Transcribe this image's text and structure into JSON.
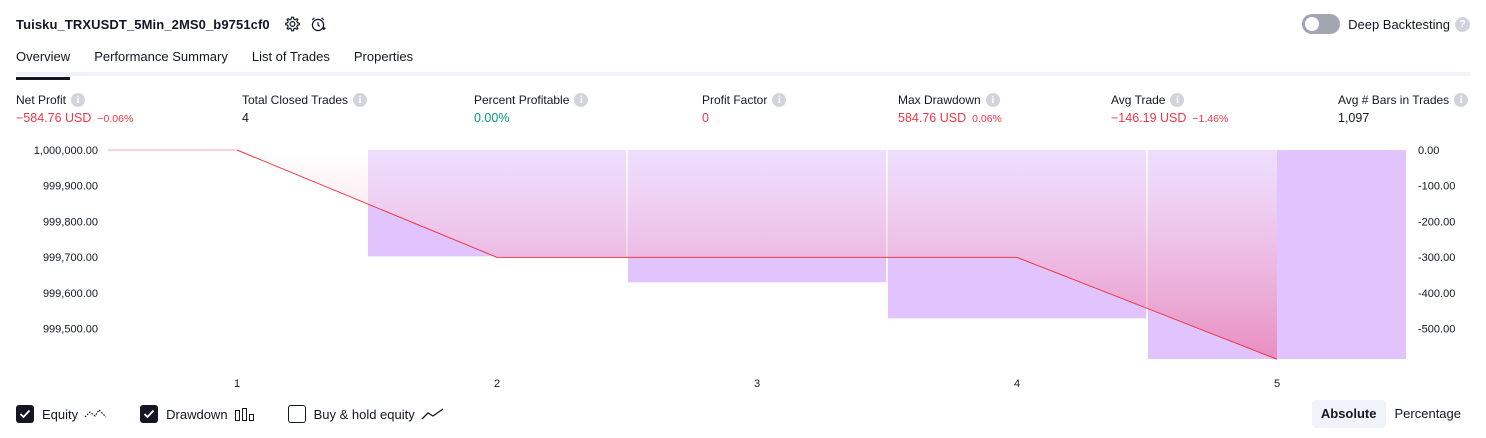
{
  "header": {
    "strategy_title": "Tuisku_TRXUSDT_5Min_2MS0_b9751cf0",
    "settings_icon": "settings-gear-icon",
    "alert_icon": "alarm-clock-icon",
    "deep_backtesting_label": "Deep Backtesting",
    "deep_backtesting_enabled": false,
    "help_glyph": "?"
  },
  "tabs": [
    {
      "label": "Overview",
      "active": true
    },
    {
      "label": "Performance Summary",
      "active": false
    },
    {
      "label": "List of Trades",
      "active": false
    },
    {
      "label": "Properties",
      "active": false
    }
  ],
  "stats": {
    "info_glyph": "i",
    "net_profit": {
      "label": "Net Profit",
      "value": "−584.76 USD",
      "pct": "−0.06%"
    },
    "total_closed_trades": {
      "label": "Total Closed Trades",
      "value": "4"
    },
    "percent_profitable": {
      "label": "Percent Profitable",
      "value": "0.00%"
    },
    "profit_factor": {
      "label": "Profit Factor",
      "value": "0"
    },
    "max_drawdown": {
      "label": "Max Drawdown",
      "value": "584.76 USD",
      "pct": "0.06%"
    },
    "avg_trade": {
      "label": "Avg Trade",
      "value": "−146.19 USD",
      "pct": "−1.46%"
    },
    "avg_bars": {
      "label": "Avg # Bars in Trades",
      "value": "1,097"
    }
  },
  "chart_data": {
    "type": "line",
    "x_categories": [
      "1",
      "2",
      "3",
      "4",
      "5"
    ],
    "series": [
      {
        "name": "Equity",
        "type": "line",
        "x": [
          1,
          2,
          4,
          5
        ],
        "values": [
          1000000.0,
          999700.0,
          999700.0,
          999415.24
        ]
      },
      {
        "name": "Drawdown",
        "type": "bar",
        "x": [
          1,
          2,
          3,
          4,
          5
        ],
        "values": [
          0.0,
          -297.6,
          -370.0,
          -471.0,
          -584.76
        ]
      }
    ],
    "y_left": {
      "ticks": [
        "1,000,000.00",
        "999,900.00",
        "999,800.00",
        "999,700.00",
        "999,600.00",
        "999,500.00"
      ],
      "ylim": [
        999416,
        1000000
      ]
    },
    "y_right": {
      "ticks": [
        "0.00",
        "-100.00",
        "-200.00",
        "-300.00",
        "-400.00",
        "-500.00"
      ],
      "ylim": [
        -584.76,
        0
      ]
    },
    "colors": {
      "equity_line": "#f23645",
      "drawdown_bar": "#e1c4fd",
      "equity_fill_top": "#ffffff",
      "equity_fill_bottom": "#ec6fa0"
    },
    "grid": false
  },
  "legend": {
    "items": [
      {
        "label": "Equity",
        "checked": true,
        "icon": "equity-line-icon"
      },
      {
        "label": "Drawdown",
        "checked": true,
        "icon": "drawdown-bars-icon"
      },
      {
        "label": "Buy & hold equity",
        "checked": false,
        "icon": "trend-line-icon"
      }
    ]
  },
  "modes": [
    {
      "label": "Absolute",
      "active": true
    },
    {
      "label": "Percentage",
      "active": false
    }
  ]
}
